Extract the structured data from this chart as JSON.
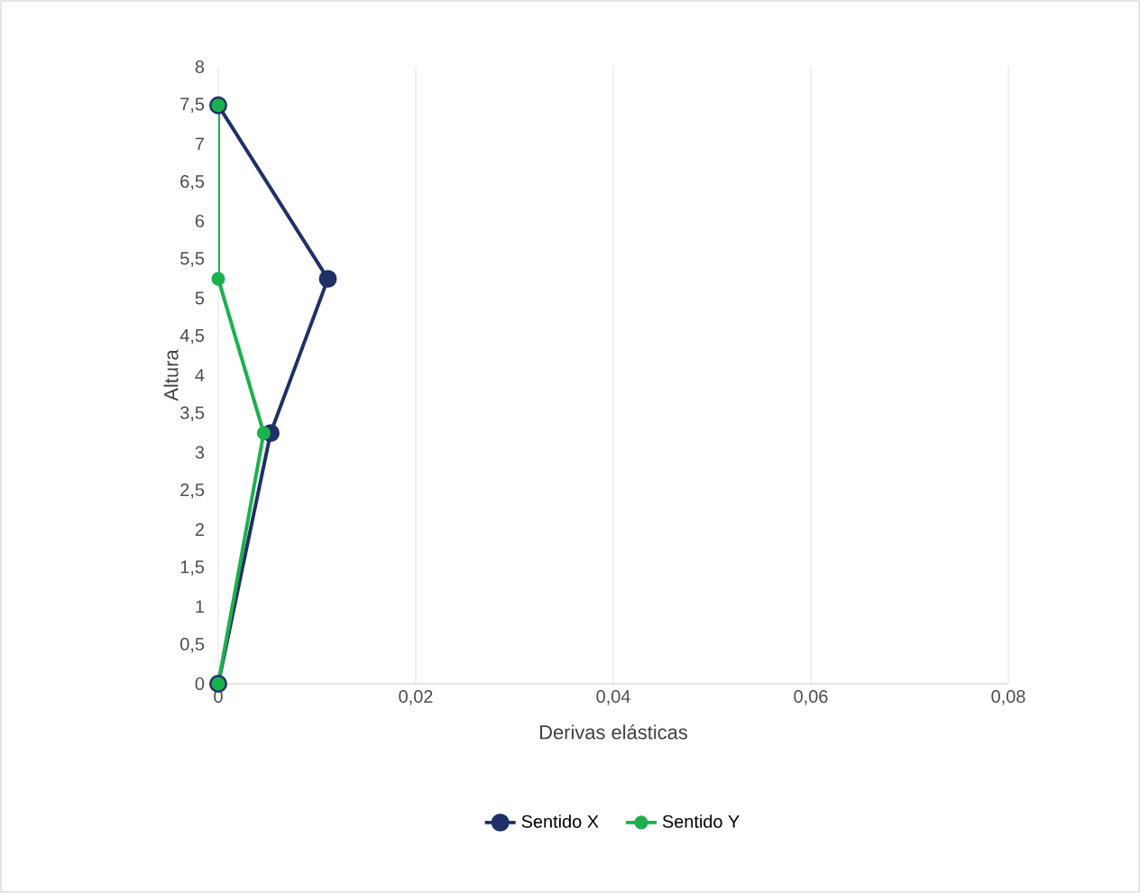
{
  "chart_data": {
    "type": "line",
    "xlabel": "Derivas elásticas",
    "ylabel": "Altura",
    "xlim": [
      0,
      0.08
    ],
    "xticks": [
      0,
      {
        "value": 0.02,
        "label": "0,02"
      },
      {
        "value": 0.04,
        "label": "0,04"
      },
      {
        "value": 0.06,
        "label": "0,06"
      },
      {
        "value": 0.08,
        "label": "0,08"
      }
    ],
    "ylim": [
      0,
      8
    ],
    "yticks": [
      0,
      {
        "value": 0.5,
        "label": "0,5"
      },
      1,
      {
        "value": 1.5,
        "label": "1,5"
      },
      2,
      {
        "value": 2.5,
        "label": "2,5"
      },
      3,
      {
        "value": 3.5,
        "label": "3,5"
      },
      4,
      {
        "value": 4.5,
        "label": "4,5"
      },
      5,
      {
        "value": 5.5,
        "label": "5,5"
      },
      6,
      {
        "value": 6.5,
        "label": "6,5"
      },
      7,
      {
        "value": 7.5,
        "label": "7,5"
      },
      8
    ],
    "grid": "x",
    "legend": "bottom",
    "marker": "circle",
    "series": [
      {
        "name": "Sentido X",
        "color": "#1f3068",
        "x": [
          0,
          0.0053,
          0.0111,
          0
        ],
        "values": [
          0,
          3.25,
          5.25,
          7.5
        ]
      },
      {
        "name": "Sentido Y",
        "color": "#1bb14c",
        "x": [
          0,
          0.0046,
          0,
          0
        ],
        "values": [
          0,
          3.25,
          5.25,
          7.5
        ]
      }
    ]
  }
}
